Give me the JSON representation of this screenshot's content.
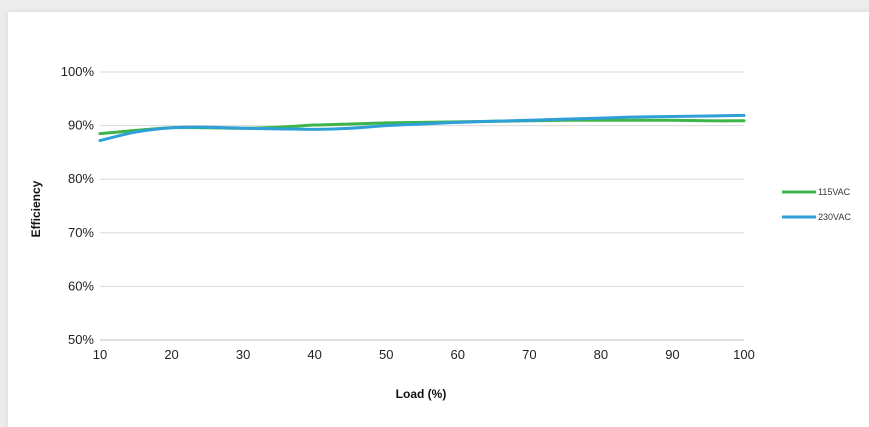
{
  "chart_data": {
    "type": "line",
    "title": "",
    "xlabel": "Load (%)",
    "ylabel": "Efficiency",
    "x": [
      10,
      15,
      20,
      25,
      30,
      35,
      40,
      45,
      50,
      55,
      60,
      65,
      70,
      75,
      80,
      85,
      90,
      95,
      100
    ],
    "xlim": [
      10,
      100
    ],
    "ylim": [
      50,
      100
    ],
    "x_ticks": [
      "10",
      "20",
      "30",
      "40",
      "50",
      "60",
      "70",
      "80",
      "90",
      "100"
    ],
    "y_ticks": [
      "50%",
      "60%",
      "70%",
      "80%",
      "90%",
      "100%"
    ],
    "grid": true,
    "legend_position": "right",
    "series": [
      {
        "name": "115VAC",
        "color": "#3cb54a",
        "values": [
          88.5,
          89.1,
          89.6,
          89.6,
          89.5,
          89.7,
          90.1,
          90.3,
          90.5,
          90.6,
          90.7,
          90.8,
          90.9,
          91.0,
          91.0,
          91.0,
          91.0,
          90.9,
          90.9
        ]
      },
      {
        "name": "230VAC",
        "color": "#2f9fd8",
        "values": [
          87.2,
          88.8,
          89.6,
          89.7,
          89.5,
          89.4,
          89.3,
          89.5,
          90.0,
          90.3,
          90.6,
          90.8,
          91.0,
          91.2,
          91.4,
          91.6,
          91.7,
          91.8,
          91.9
        ]
      }
    ]
  }
}
